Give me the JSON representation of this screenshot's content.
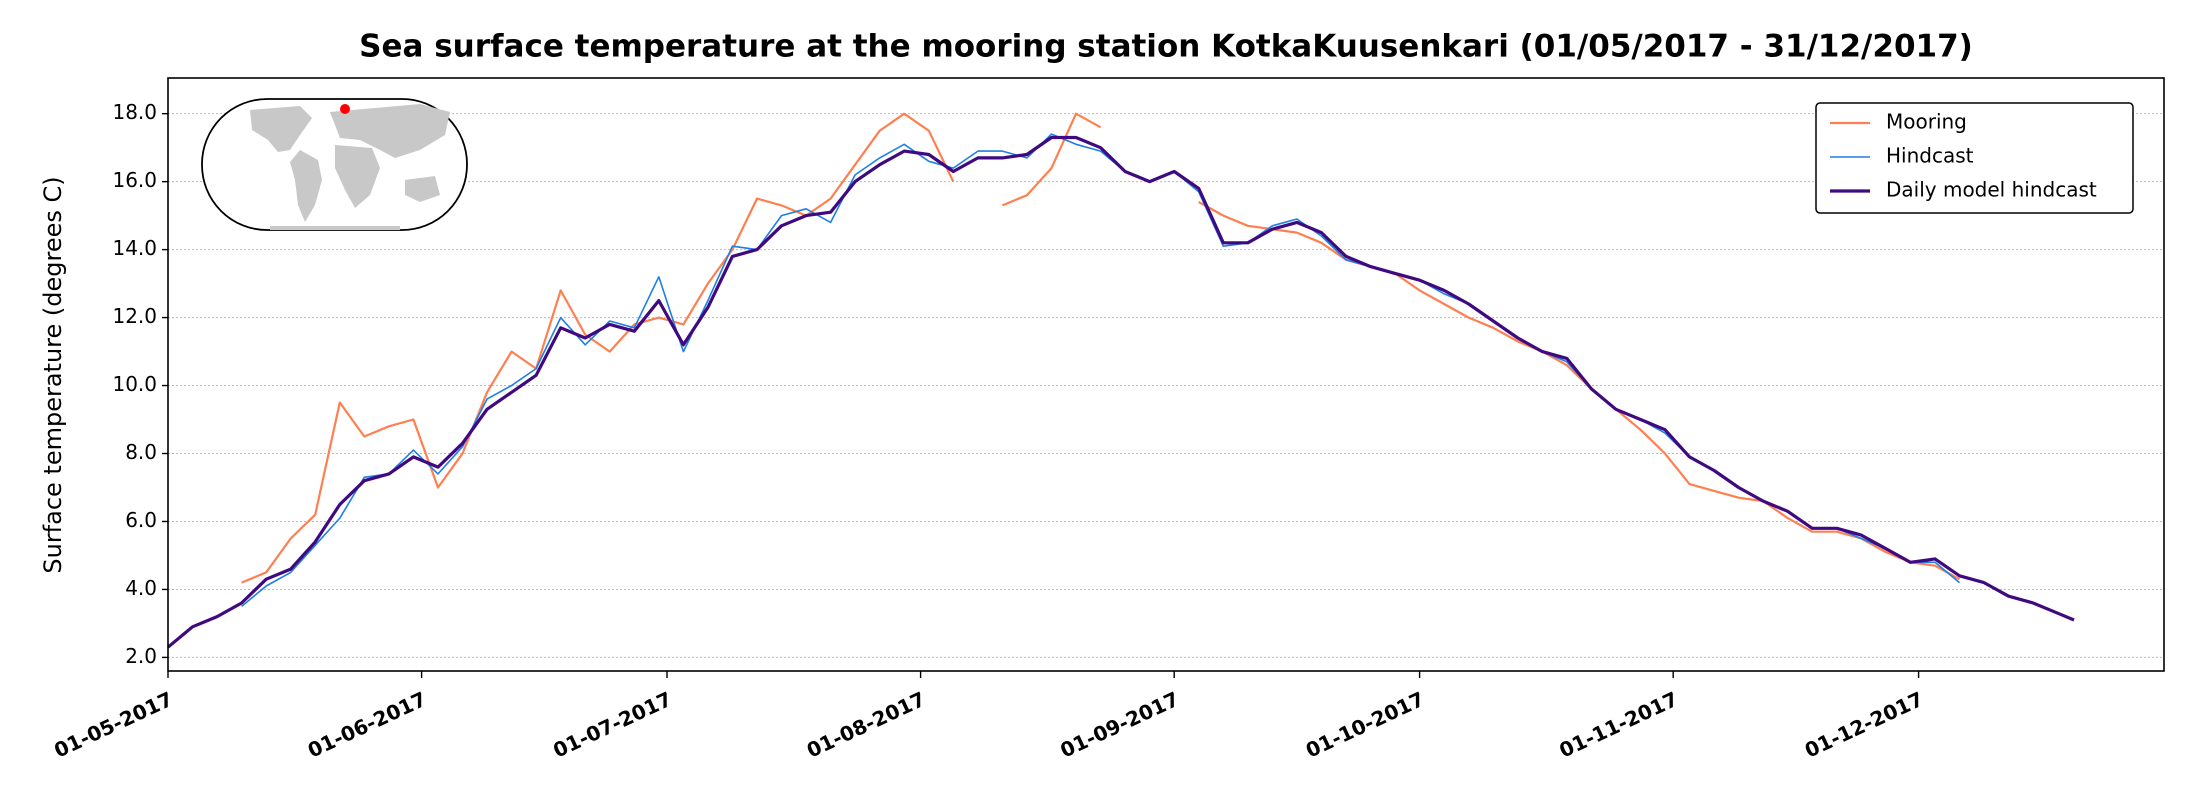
{
  "chart_data": {
    "type": "line",
    "title": "Sea surface temperature at the mooring station KotkaKuusenkari (01/05/2017 - 31/12/2017)",
    "y_label": "Surface temperature (degrees C)",
    "x": [
      "01-05-2017",
      "04-05-2017",
      "07-05-2017",
      "10-05-2017",
      "13-05-2017",
      "16-05-2017",
      "19-05-2017",
      "22-05-2017",
      "25-05-2017",
      "28-05-2017",
      "31-05-2017",
      "03-06-2017",
      "06-06-2017",
      "09-06-2017",
      "12-06-2017",
      "15-06-2017",
      "18-06-2017",
      "21-06-2017",
      "24-06-2017",
      "27-06-2017",
      "30-06-2017",
      "03-07-2017",
      "06-07-2017",
      "09-07-2017",
      "12-07-2017",
      "15-07-2017",
      "18-07-2017",
      "21-07-2017",
      "24-07-2017",
      "27-07-2017",
      "30-07-2017",
      "02-08-2017",
      "05-08-2017",
      "08-08-2017",
      "11-08-2017",
      "14-08-2017",
      "17-08-2017",
      "20-08-2017",
      "23-08-2017",
      "26-08-2017",
      "29-08-2017",
      "01-09-2017",
      "04-09-2017",
      "07-09-2017",
      "10-09-2017",
      "13-09-2017",
      "16-09-2017",
      "19-09-2017",
      "22-09-2017",
      "25-09-2017",
      "28-09-2017",
      "01-10-2017",
      "04-10-2017",
      "07-10-2017",
      "10-10-2017",
      "13-10-2017",
      "16-10-2017",
      "19-10-2017",
      "22-10-2017",
      "25-10-2017",
      "28-10-2017",
      "31-10-2017",
      "03-11-2017",
      "06-11-2017",
      "09-11-2017",
      "12-11-2017",
      "15-11-2017",
      "18-11-2017",
      "21-11-2017",
      "24-11-2017",
      "27-11-2017",
      "30-11-2017",
      "03-12-2017",
      "06-12-2017",
      "09-12-2017",
      "12-12-2017",
      "15-12-2017",
      "18-12-2017",
      "20-12-2017"
    ],
    "series": [
      {
        "name": "Mooring",
        "color": "#ff7f50",
        "width": 2.2,
        "values": [
          null,
          null,
          null,
          4.2,
          4.5,
          5.5,
          6.2,
          9.5,
          8.5,
          8.8,
          9.0,
          7.0,
          8.0,
          9.8,
          11.0,
          10.5,
          12.8,
          11.5,
          11.0,
          11.8,
          12.0,
          11.8,
          13.0,
          14.0,
          15.5,
          15.3,
          15.0,
          15.5,
          16.5,
          17.5,
          18.0,
          17.5,
          16.0,
          null,
          15.3,
          15.6,
          16.4,
          18.0,
          17.6,
          null,
          null,
          null,
          15.4,
          15.0,
          14.7,
          14.6,
          14.5,
          14.2,
          13.7,
          13.5,
          13.3,
          12.8,
          12.4,
          12.0,
          11.7,
          11.3,
          11.0,
          10.6,
          9.9,
          9.3,
          8.7,
          8.0,
          7.1,
          6.9,
          6.7,
          6.6,
          6.1,
          5.7,
          5.7,
          5.5,
          5.1,
          4.8,
          4.7,
          4.3,
          null,
          null,
          null,
          null,
          null
        ]
      },
      {
        "name": "Hindcast",
        "color": "#1e7fe6",
        "width": 1.6,
        "values": [
          null,
          null,
          null,
          3.5,
          4.1,
          4.5,
          5.3,
          6.1,
          7.3,
          7.4,
          8.1,
          7.4,
          8.2,
          9.6,
          10.0,
          10.5,
          12.0,
          11.2,
          11.9,
          11.7,
          13.2,
          11.0,
          12.5,
          14.1,
          14.0,
          15.0,
          15.2,
          14.8,
          16.2,
          16.7,
          17.1,
          16.6,
          16.4,
          16.9,
          16.9,
          16.7,
          17.4,
          17.1,
          16.9,
          16.3,
          16.0,
          16.3,
          15.7,
          14.1,
          14.2,
          14.7,
          14.9,
          14.4,
          13.7,
          13.5,
          13.3,
          13.1,
          12.7,
          12.4,
          11.9,
          11.4,
          11.0,
          10.7,
          9.9,
          9.3,
          9.0,
          8.6,
          7.9,
          7.5,
          7.0,
          6.6,
          6.3,
          5.8,
          5.8,
          5.5,
          5.2,
          4.8,
          4.8,
          4.2,
          null,
          null,
          null,
          null,
          null
        ]
      },
      {
        "name": "Daily model hindcast",
        "color": "#3f0a7f",
        "width": 3.2,
        "values": [
          2.3,
          2.9,
          3.2,
          3.6,
          4.3,
          4.6,
          5.4,
          6.5,
          7.2,
          7.4,
          7.9,
          7.6,
          8.3,
          9.3,
          9.8,
          10.3,
          11.7,
          11.4,
          11.8,
          11.6,
          12.5,
          11.2,
          12.3,
          13.8,
          14.0,
          14.7,
          15.0,
          15.1,
          16.0,
          16.5,
          16.9,
          16.8,
          16.3,
          16.7,
          16.7,
          16.8,
          17.3,
          17.3,
          17.0,
          16.3,
          16.0,
          16.3,
          15.8,
          14.2,
          14.2,
          14.6,
          14.8,
          14.5,
          13.8,
          13.5,
          13.3,
          13.1,
          12.8,
          12.4,
          11.9,
          11.4,
          11.0,
          10.8,
          9.9,
          9.3,
          9.0,
          8.7,
          7.9,
          7.5,
          7.0,
          6.6,
          6.3,
          5.8,
          5.8,
          5.6,
          5.2,
          4.8,
          4.9,
          4.4,
          4.2,
          3.8,
          3.6,
          3.3,
          3.1
        ]
      }
    ],
    "xlim": [
      "01-05-2017",
      "31-12-2017"
    ],
    "xticks": [
      "01-05-2017",
      "01-06-2017",
      "01-07-2017",
      "01-08-2017",
      "01-09-2017",
      "01-10-2017",
      "01-11-2017",
      "01-12-2017"
    ],
    "ylim": [
      1.6,
      19.05
    ],
    "yticks": [
      {
        "value": 2,
        "label": "2.0"
      },
      {
        "value": 4,
        "label": "4.0"
      },
      {
        "value": 6,
        "label": "6.0"
      },
      {
        "value": 8,
        "label": "8.0"
      },
      {
        "value": 10,
        "label": "10.0"
      },
      {
        "value": 12,
        "label": "12.0"
      },
      {
        "value": 14,
        "label": "14.0"
      },
      {
        "value": 16,
        "label": "16.0"
      },
      {
        "value": 18,
        "label": "18.0"
      }
    ],
    "grid": true,
    "legend": "upper right"
  }
}
